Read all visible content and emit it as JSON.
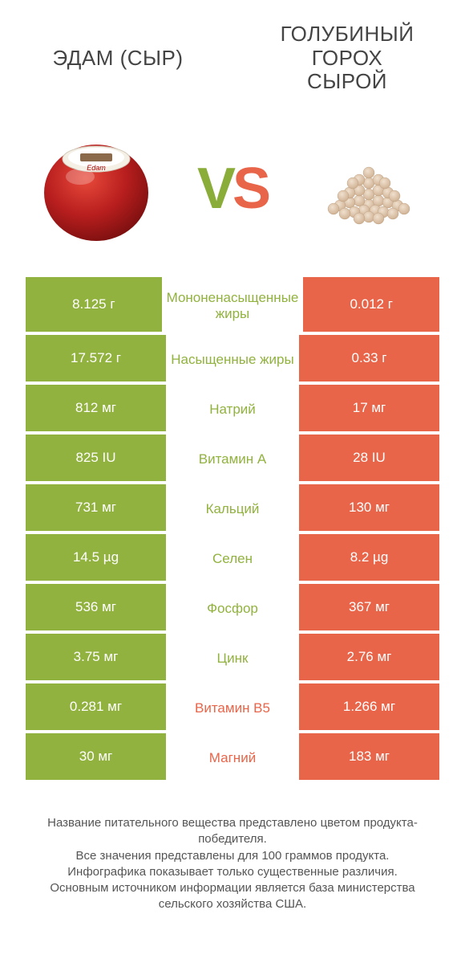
{
  "colors": {
    "green": "#91b23e",
    "orange": "#e8654a",
    "cheese_red": "#b81e1e",
    "cheese_top": "#d43a2a",
    "cheese_label": "#f5f0e6",
    "pea_light": "#e8d4c0",
    "pea_dark": "#c9a888"
  },
  "titles": {
    "left": "ЭДАМ (СЫР)",
    "right_l1": "ГОЛУБИНЫЙ",
    "right_l2": "ГОРОХ",
    "right_l3": "СЫРОЙ"
  },
  "vs": {
    "v": "V",
    "s": "S"
  },
  "rows": [
    {
      "left": "8.125 г",
      "mid": "Мононенасыщенные жиры",
      "right": "0.012 г",
      "winner": "left"
    },
    {
      "left": "17.572 г",
      "mid": "Насыщенные жиры",
      "right": "0.33 г",
      "winner": "left"
    },
    {
      "left": "812 мг",
      "mid": "Натрий",
      "right": "17 мг",
      "winner": "left"
    },
    {
      "left": "825 IU",
      "mid": "Витамин A",
      "right": "28 IU",
      "winner": "left"
    },
    {
      "left": "731 мг",
      "mid": "Кальций",
      "right": "130 мг",
      "winner": "left"
    },
    {
      "left": "14.5 µg",
      "mid": "Селен",
      "right": "8.2 µg",
      "winner": "left"
    },
    {
      "left": "536 мг",
      "mid": "Фосфор",
      "right": "367 мг",
      "winner": "left"
    },
    {
      "left": "3.75 мг",
      "mid": "Цинк",
      "right": "2.76 мг",
      "winner": "left"
    },
    {
      "left": "0.281 мг",
      "mid": "Витамин B5",
      "right": "1.266 мг",
      "winner": "right"
    },
    {
      "left": "30 мг",
      "mid": "Магний",
      "right": "183 мг",
      "winner": "right"
    }
  ],
  "footer": {
    "l1": "Название питательного вещества представлено цветом продукта-победителя.",
    "l2": "Все значения представлены для 100 граммов продукта.",
    "l3": "Инфографика показывает только существенные различия.",
    "l4": "Основным источником информации является база министерства сельского хозяйства США."
  }
}
